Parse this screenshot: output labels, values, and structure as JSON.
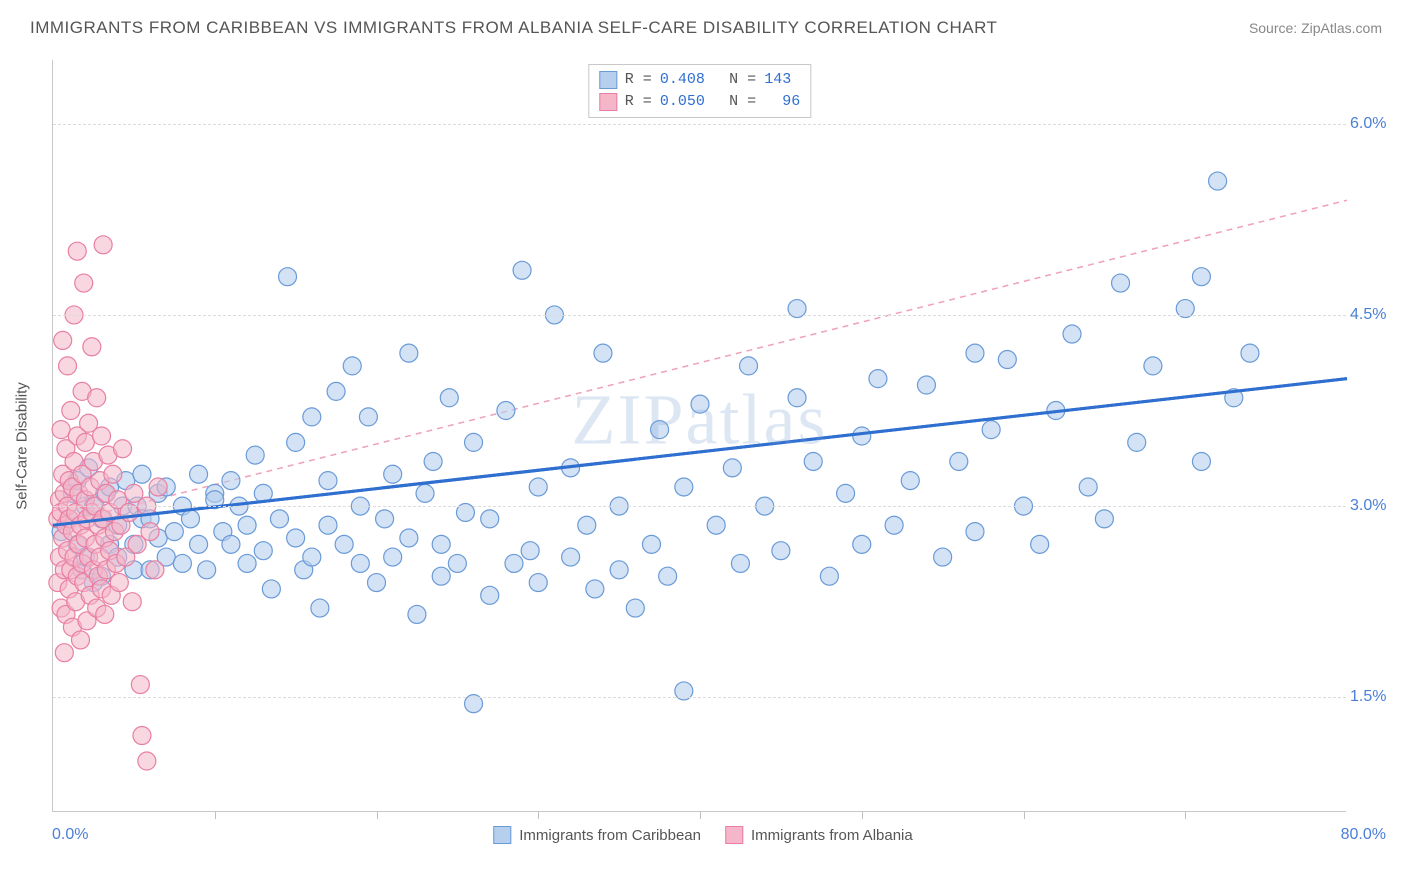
{
  "title": "IMMIGRANTS FROM CARIBBEAN VS IMMIGRANTS FROM ALBANIA SELF-CARE DISABILITY CORRELATION CHART",
  "source_label": "Source: ZipAtlas.com",
  "watermark": "ZIPatlas",
  "y_axis_label": "Self-Care Disability",
  "chart": {
    "type": "scatter",
    "xlim": [
      0,
      80
    ],
    "ylim": [
      0.6,
      6.5
    ],
    "x_ticks": [
      10,
      20,
      30,
      40,
      50,
      60,
      70
    ],
    "x_origin_label": "0.0%",
    "x_max_label": "80.0%",
    "y_gridlines": [
      1.5,
      3.0,
      4.5,
      6.0
    ],
    "y_tick_labels": [
      "1.5%",
      "3.0%",
      "4.5%",
      "6.0%"
    ],
    "grid_color": "#dcdcdc",
    "axis_color": "#c8c8c8",
    "background_color": "#ffffff",
    "marker_radius": 9,
    "marker_stroke_width": 1.2,
    "series": [
      {
        "name": "Immigrants from Caribbean",
        "R": "0.408",
        "N": "143",
        "fill": "#b5cfec",
        "fill_opacity": 0.6,
        "stroke": "#6a9bd8",
        "trend": {
          "x1": 0,
          "y1": 2.85,
          "x2": 80,
          "y2": 4.0,
          "stroke": "#2f6fd0",
          "width": 3,
          "dash": ""
        },
        "points": [
          [
            0.5,
            2.8
          ],
          [
            1,
            2.9
          ],
          [
            1.2,
            3.1
          ],
          [
            1.5,
            2.7
          ],
          [
            1.5,
            3.2
          ],
          [
            1.8,
            2.5
          ],
          [
            2,
            3.0
          ],
          [
            2,
            2.6
          ],
          [
            2.2,
            3.3
          ],
          [
            2.5,
            2.4
          ],
          [
            2.5,
            3.0
          ],
          [
            3,
            2.9
          ],
          [
            3,
            2.45
          ],
          [
            3.2,
            3.1
          ],
          [
            3.5,
            2.7
          ],
          [
            3.5,
            3.15
          ],
          [
            4,
            2.6
          ],
          [
            4,
            2.85
          ],
          [
            4.3,
            3.0
          ],
          [
            4.5,
            3.2
          ],
          [
            5,
            2.7
          ],
          [
            5,
            2.5
          ],
          [
            5.2,
            3.0
          ],
          [
            5.5,
            2.9
          ],
          [
            5.5,
            3.25
          ],
          [
            6,
            2.5
          ],
          [
            6,
            2.9
          ],
          [
            6.5,
            2.75
          ],
          [
            6.5,
            3.1
          ],
          [
            7,
            2.6
          ],
          [
            7,
            3.15
          ],
          [
            7.5,
            2.8
          ],
          [
            8,
            3.0
          ],
          [
            8,
            2.55
          ],
          [
            8.5,
            2.9
          ],
          [
            9,
            3.25
          ],
          [
            9,
            2.7
          ],
          [
            9.5,
            2.5
          ],
          [
            10,
            3.1
          ],
          [
            10,
            3.05
          ],
          [
            10.5,
            2.8
          ],
          [
            11,
            2.7
          ],
          [
            11,
            3.2
          ],
          [
            11.5,
            3.0
          ],
          [
            12,
            2.55
          ],
          [
            12,
            2.85
          ],
          [
            12.5,
            3.4
          ],
          [
            13,
            2.65
          ],
          [
            13,
            3.1
          ],
          [
            13.5,
            2.35
          ],
          [
            14,
            2.9
          ],
          [
            14.5,
            4.8
          ],
          [
            15,
            2.75
          ],
          [
            15,
            3.5
          ],
          [
            15.5,
            2.5
          ],
          [
            16,
            3.7
          ],
          [
            16,
            2.6
          ],
          [
            16.5,
            2.2
          ],
          [
            17,
            3.2
          ],
          [
            17,
            2.85
          ],
          [
            17.5,
            3.9
          ],
          [
            18,
            2.7
          ],
          [
            18.5,
            4.1
          ],
          [
            19,
            2.55
          ],
          [
            19,
            3.0
          ],
          [
            19.5,
            3.7
          ],
          [
            20,
            2.4
          ],
          [
            20.5,
            2.9
          ],
          [
            21,
            3.25
          ],
          [
            21,
            2.6
          ],
          [
            22,
            2.75
          ],
          [
            22,
            4.2
          ],
          [
            22.5,
            2.15
          ],
          [
            23,
            3.1
          ],
          [
            23.5,
            3.35
          ],
          [
            24,
            2.45
          ],
          [
            24,
            2.7
          ],
          [
            24.5,
            3.85
          ],
          [
            25,
            2.55
          ],
          [
            25.5,
            2.95
          ],
          [
            26,
            1.45
          ],
          [
            26,
            3.5
          ],
          [
            27,
            2.3
          ],
          [
            27,
            2.9
          ],
          [
            28,
            3.75
          ],
          [
            28.5,
            2.55
          ],
          [
            29,
            4.85
          ],
          [
            29.5,
            2.65
          ],
          [
            30,
            3.15
          ],
          [
            30,
            2.4
          ],
          [
            31,
            4.5
          ],
          [
            32,
            3.3
          ],
          [
            32,
            2.6
          ],
          [
            33,
            2.85
          ],
          [
            33.5,
            2.35
          ],
          [
            34,
            4.2
          ],
          [
            35,
            2.5
          ],
          [
            35,
            3.0
          ],
          [
            36,
            2.2
          ],
          [
            37,
            2.7
          ],
          [
            37.5,
            3.6
          ],
          [
            38,
            2.45
          ],
          [
            39,
            3.15
          ],
          [
            39,
            1.55
          ],
          [
            40,
            3.8
          ],
          [
            41,
            2.85
          ],
          [
            42,
            3.3
          ],
          [
            42.5,
            2.55
          ],
          [
            43,
            4.1
          ],
          [
            44,
            3.0
          ],
          [
            45,
            2.65
          ],
          [
            46,
            4.55
          ],
          [
            46,
            3.85
          ],
          [
            47,
            3.35
          ],
          [
            48,
            2.45
          ],
          [
            49,
            3.1
          ],
          [
            50,
            2.7
          ],
          [
            50,
            3.55
          ],
          [
            51,
            4.0
          ],
          [
            52,
            2.85
          ],
          [
            53,
            3.2
          ],
          [
            54,
            3.95
          ],
          [
            55,
            2.6
          ],
          [
            56,
            3.35
          ],
          [
            57,
            4.2
          ],
          [
            57,
            2.8
          ],
          [
            58,
            3.6
          ],
          [
            59,
            4.15
          ],
          [
            60,
            3.0
          ],
          [
            61,
            2.7
          ],
          [
            62,
            3.75
          ],
          [
            63,
            4.35
          ],
          [
            64,
            3.15
          ],
          [
            65,
            2.9
          ],
          [
            66,
            4.75
          ],
          [
            67,
            3.5
          ],
          [
            68,
            4.1
          ],
          [
            70,
            4.55
          ],
          [
            71,
            3.35
          ],
          [
            71,
            4.8
          ],
          [
            72,
            5.55
          ],
          [
            73,
            3.85
          ],
          [
            74,
            4.2
          ]
        ]
      },
      {
        "name": "Immigrants from Albania",
        "R": "0.050",
        "N": "  96",
        "fill": "#f4b6c8",
        "fill_opacity": 0.55,
        "stroke": "#e87fa3",
        "trend": {
          "x1": 0,
          "y1": 2.85,
          "x2": 80,
          "y2": 5.4,
          "stroke": "#f0a0b8",
          "width": 1.5,
          "dash": "6 5"
        },
        "points": [
          [
            0.3,
            2.9
          ],
          [
            0.3,
            2.4
          ],
          [
            0.4,
            3.05
          ],
          [
            0.4,
            2.6
          ],
          [
            0.5,
            3.6
          ],
          [
            0.5,
            2.2
          ],
          [
            0.5,
            2.95
          ],
          [
            0.6,
            4.3
          ],
          [
            0.6,
            2.75
          ],
          [
            0.6,
            3.25
          ],
          [
            0.7,
            1.85
          ],
          [
            0.7,
            3.1
          ],
          [
            0.7,
            2.5
          ],
          [
            0.8,
            2.85
          ],
          [
            0.8,
            3.45
          ],
          [
            0.8,
            2.15
          ],
          [
            0.9,
            4.1
          ],
          [
            0.9,
            2.65
          ],
          [
            0.9,
            3.0
          ],
          [
            1.0,
            2.35
          ],
          [
            1.0,
            3.2
          ],
          [
            1.0,
            2.9
          ],
          [
            1.1,
            3.75
          ],
          [
            1.1,
            2.5
          ],
          [
            1.2,
            2.05
          ],
          [
            1.2,
            2.8
          ],
          [
            1.2,
            3.15
          ],
          [
            1.3,
            4.5
          ],
          [
            1.3,
            2.6
          ],
          [
            1.3,
            3.35
          ],
          [
            1.4,
            2.25
          ],
          [
            1.4,
            2.95
          ],
          [
            1.5,
            3.55
          ],
          [
            1.5,
            2.45
          ],
          [
            1.5,
            5.0
          ],
          [
            1.6,
            2.7
          ],
          [
            1.6,
            3.1
          ],
          [
            1.7,
            1.95
          ],
          [
            1.7,
            2.85
          ],
          [
            1.8,
            3.9
          ],
          [
            1.8,
            2.55
          ],
          [
            1.8,
            3.25
          ],
          [
            1.9,
            4.75
          ],
          [
            1.9,
            2.4
          ],
          [
            2.0,
            3.05
          ],
          [
            2.0,
            2.75
          ],
          [
            2.0,
            3.5
          ],
          [
            2.1,
            2.1
          ],
          [
            2.1,
            2.9
          ],
          [
            2.2,
            3.65
          ],
          [
            2.2,
            2.6
          ],
          [
            2.3,
            3.15
          ],
          [
            2.3,
            2.3
          ],
          [
            2.4,
            2.95
          ],
          [
            2.4,
            4.25
          ],
          [
            2.5,
            2.5
          ],
          [
            2.5,
            3.35
          ],
          [
            2.6,
            2.7
          ],
          [
            2.6,
            3.0
          ],
          [
            2.7,
            2.2
          ],
          [
            2.7,
            3.85
          ],
          [
            2.8,
            2.85
          ],
          [
            2.8,
            2.45
          ],
          [
            2.9,
            3.2
          ],
          [
            2.9,
            2.6
          ],
          [
            3.0,
            3.55
          ],
          [
            3.0,
            2.35
          ],
          [
            3.1,
            2.9
          ],
          [
            3.1,
            5.05
          ],
          [
            3.2,
            2.75
          ],
          [
            3.2,
            2.15
          ],
          [
            3.3,
            3.1
          ],
          [
            3.3,
            2.5
          ],
          [
            3.4,
            3.4
          ],
          [
            3.5,
            2.65
          ],
          [
            3.5,
            2.95
          ],
          [
            3.6,
            2.3
          ],
          [
            3.7,
            3.25
          ],
          [
            3.8,
            2.8
          ],
          [
            3.9,
            2.55
          ],
          [
            4.0,
            3.05
          ],
          [
            4.1,
            2.4
          ],
          [
            4.2,
            2.85
          ],
          [
            4.3,
            3.45
          ],
          [
            4.5,
            2.6
          ],
          [
            4.7,
            2.95
          ],
          [
            4.9,
            2.25
          ],
          [
            5.0,
            3.1
          ],
          [
            5.2,
            2.7
          ],
          [
            5.4,
            1.6
          ],
          [
            5.5,
            1.2
          ],
          [
            5.8,
            1.0
          ],
          [
            5.8,
            3.0
          ],
          [
            6.0,
            2.8
          ],
          [
            6.3,
            2.5
          ],
          [
            6.5,
            3.15
          ]
        ]
      }
    ]
  },
  "legend_top": {
    "rows": [
      {
        "swatch_fill": "#b5cfec",
        "swatch_stroke": "#6a9bd8",
        "r_label": "R =",
        "r_val": "0.408",
        "n_label": "N =",
        "n_val": "143"
      },
      {
        "swatch_fill": "#f4b6c8",
        "swatch_stroke": "#e87fa3",
        "r_label": "R =",
        "r_val": "0.050",
        "n_label": "N =",
        "n_val": "  96"
      }
    ]
  },
  "legend_bottom": {
    "items": [
      {
        "swatch_fill": "#b5cfec",
        "swatch_stroke": "#6a9bd8",
        "label": "Immigrants from Caribbean"
      },
      {
        "swatch_fill": "#f4b6c8",
        "swatch_stroke": "#e87fa3",
        "label": "Immigrants from Albania"
      }
    ]
  }
}
